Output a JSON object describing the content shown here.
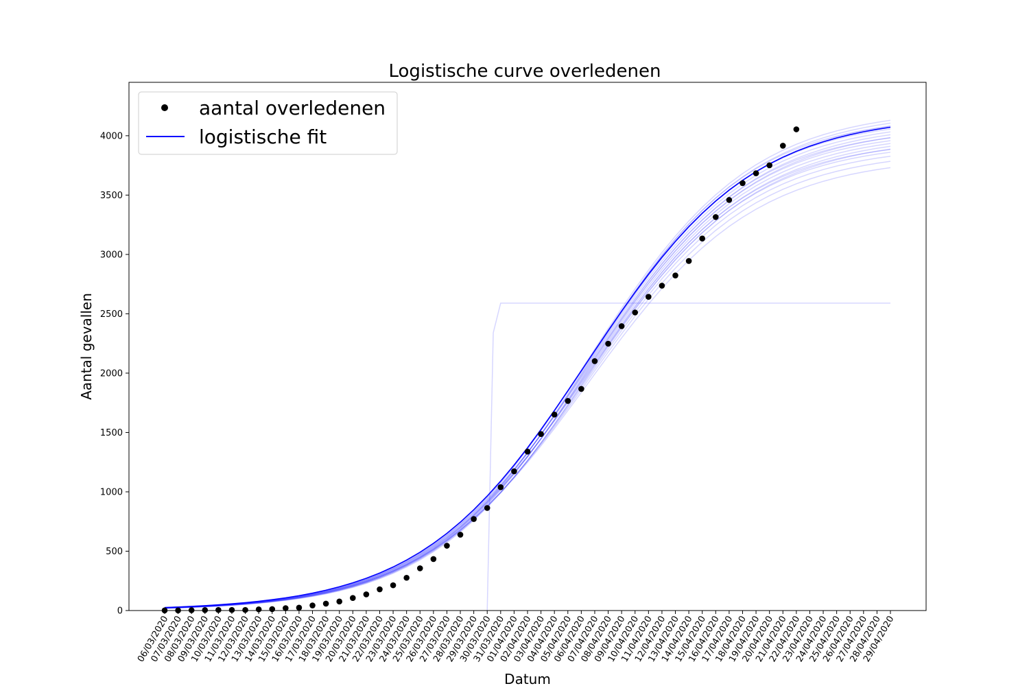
{
  "chart_data": {
    "type": "line",
    "title": "Logistische curve overledenen",
    "xlabel": "Datum",
    "ylabel": "Aantal gevallen",
    "ylim": [
      0,
      4450
    ],
    "yticks": [
      0,
      500,
      1000,
      1500,
      2000,
      2500,
      3000,
      3500,
      4000
    ],
    "grid": false,
    "legend_position": "top-left",
    "categories": [
      "06/03/2020",
      "07/03/2020",
      "08/03/2020",
      "09/03/2020",
      "10/03/2020",
      "11/03/2020",
      "12/03/2020",
      "13/03/2020",
      "14/03/2020",
      "15/03/2020",
      "16/03/2020",
      "17/03/2020",
      "18/03/2020",
      "19/03/2020",
      "20/03/2020",
      "21/03/2020",
      "22/03/2020",
      "23/03/2020",
      "24/03/2020",
      "25/03/2020",
      "26/03/2020",
      "27/03/2020",
      "28/03/2020",
      "29/03/2020",
      "30/03/2020",
      "31/03/2020",
      "01/04/2020",
      "02/04/2020",
      "03/04/2020",
      "04/04/2020",
      "05/04/2020",
      "06/04/2020",
      "07/04/2020",
      "08/04/2020",
      "09/04/2020",
      "10/04/2020",
      "11/04/2020",
      "12/04/2020",
      "13/04/2020",
      "14/04/2020",
      "15/04/2020",
      "16/04/2020",
      "17/04/2020",
      "18/04/2020",
      "19/04/2020",
      "20/04/2020",
      "21/04/2020",
      "22/04/2020",
      "23/04/2020",
      "24/04/2020",
      "25/04/2020",
      "26/04/2020",
      "27/04/2020",
      "28/04/2020",
      "29/04/2020"
    ],
    "series": [
      {
        "name": "aantal overledenen",
        "kind": "scatter",
        "color": "#000000",
        "values": [
          1,
          1,
          3,
          4,
          5,
          5,
          5,
          10,
          12,
          20,
          24,
          43,
          58,
          76,
          106,
          136,
          179,
          213,
          276,
          356,
          434,
          546,
          639,
          771,
          864,
          1039,
          1173,
          1339,
          1487,
          1651,
          1766,
          1867,
          2101,
          2248,
          2396,
          2511,
          2643,
          2737,
          2823,
          2945,
          3134,
          3315,
          3459,
          3601,
          3684,
          3751,
          3916,
          4054
        ]
      },
      {
        "name": "logistische fit",
        "kind": "line",
        "color": "#0000ff",
        "values": [
          21,
          25,
          30,
          35,
          42,
          50,
          59,
          70,
          83,
          98,
          116,
          137,
          161,
          190,
          224,
          263,
          307,
          359,
          418,
          484,
          559,
          642,
          734,
          834,
          942,
          1058,
          1181,
          1310,
          1444,
          1582,
          1722,
          1863,
          2004,
          2143,
          2278,
          2409,
          2535,
          2655,
          2768,
          2874,
          2972,
          3062,
          3145,
          3220,
          3288,
          3349,
          3404,
          3453,
          3497,
          3536,
          3570,
          3600,
          3627,
          3650,
          3671
        ]
      }
    ],
    "bootstrap_fits": {
      "color": "#0000ff",
      "asymptotes": [
        3830,
        3880,
        3920,
        3950,
        3970,
        3990,
        4010,
        4030,
        4050,
        4070,
        4090,
        4110,
        4130,
        4150,
        4170,
        4190,
        4210,
        4230
      ],
      "step_curve": {
        "x": [
          24.0,
          24.45,
          25.0,
          25.5,
          54.0
        ],
        "y": [
          0,
          2340,
          2590,
          2590,
          2590
        ]
      }
    }
  }
}
